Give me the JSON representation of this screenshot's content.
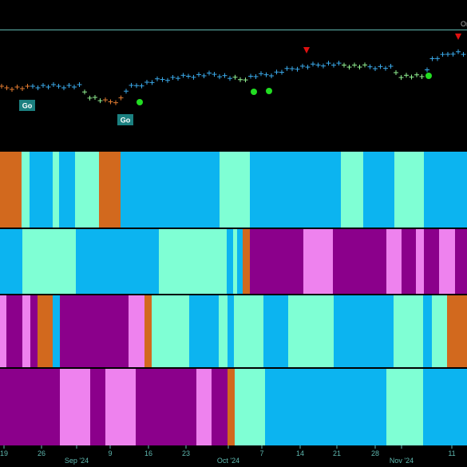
{
  "x_axis": {
    "labels": [
      "19",
      "26",
      "Sep '24",
      "9",
      "16",
      "23",
      "Oct '24",
      "7",
      "14",
      "21",
      "28",
      "Nov '24",
      "11"
    ]
  },
  "markers": {
    "go_labels": [
      "Go",
      "Go"
    ]
  },
  "corner_label": "Or"
}
